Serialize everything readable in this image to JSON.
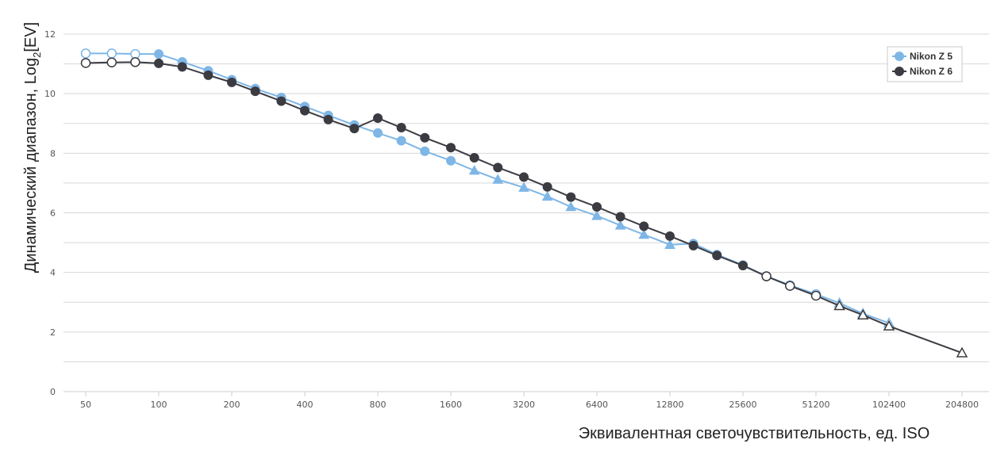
{
  "chart_data": {
    "type": "line",
    "xlabel": "Эквивалентная светочувствительность, ед. ISO",
    "ylabel_main": "Динамический диапазон, Log",
    "ylabel_sub": "2",
    "ylabel_tail": "[EV]",
    "ylim": [
      0,
      12
    ],
    "y_ticks": [
      0,
      2,
      4,
      6,
      8,
      10,
      12
    ],
    "x_scale": "log2",
    "x_tick_labels": [
      "50",
      "100",
      "200",
      "400",
      "800",
      "1600",
      "3200",
      "6400",
      "12800",
      "25600",
      "51200",
      "102400",
      "204800"
    ],
    "grid": true,
    "legend_position": "top-right",
    "colors": {
      "Nikon Z 5": "#7eb6e6",
      "Nikon Z 6": "#3b3b42"
    },
    "series": [
      {
        "name": "Nikon Z 5",
        "points": [
          {
            "iso": 50,
            "ev": 11.35,
            "marker": "hollow-circle"
          },
          {
            "iso": 64,
            "ev": 11.35,
            "marker": "hollow-circle"
          },
          {
            "iso": 80,
            "ev": 11.33,
            "marker": "hollow-circle"
          },
          {
            "iso": 100,
            "ev": 11.33,
            "marker": "circle"
          },
          {
            "iso": 125,
            "ev": 11.07,
            "marker": "circle"
          },
          {
            "iso": 160,
            "ev": 10.77,
            "marker": "circle"
          },
          {
            "iso": 200,
            "ev": 10.47,
            "marker": "circle"
          },
          {
            "iso": 250,
            "ev": 10.17,
            "marker": "circle"
          },
          {
            "iso": 320,
            "ev": 9.87,
            "marker": "circle"
          },
          {
            "iso": 400,
            "ev": 9.57,
            "marker": "circle"
          },
          {
            "iso": 500,
            "ev": 9.27,
            "marker": "circle"
          },
          {
            "iso": 640,
            "ev": 8.95,
            "marker": "circle"
          },
          {
            "iso": 800,
            "ev": 8.68,
            "marker": "circle"
          },
          {
            "iso": 1000,
            "ev": 8.42,
            "marker": "circle"
          },
          {
            "iso": 1250,
            "ev": 8.07,
            "marker": "circle"
          },
          {
            "iso": 1600,
            "ev": 7.75,
            "marker": "circle"
          },
          {
            "iso": 2000,
            "ev": 7.42,
            "marker": "triangle"
          },
          {
            "iso": 2500,
            "ev": 7.12,
            "marker": "triangle"
          },
          {
            "iso": 3200,
            "ev": 6.85,
            "marker": "triangle"
          },
          {
            "iso": 4000,
            "ev": 6.55,
            "marker": "triangle"
          },
          {
            "iso": 5000,
            "ev": 6.2,
            "marker": "triangle"
          },
          {
            "iso": 6400,
            "ev": 5.9,
            "marker": "triangle"
          },
          {
            "iso": 8000,
            "ev": 5.58,
            "marker": "triangle"
          },
          {
            "iso": 10000,
            "ev": 5.27,
            "marker": "triangle"
          },
          {
            "iso": 12800,
            "ev": 4.93,
            "marker": "triangle"
          },
          {
            "iso": 16000,
            "ev": 4.97,
            "marker": "circle"
          },
          {
            "iso": 20000,
            "ev": 4.6,
            "marker": "circle"
          },
          {
            "iso": 25600,
            "ev": 4.25,
            "marker": "circle"
          },
          {
            "iso": 32000,
            "ev": 3.87,
            "marker": "hollow-circle"
          },
          {
            "iso": 40000,
            "ev": 3.57,
            "marker": "hollow-circle"
          },
          {
            "iso": 51200,
            "ev": 3.27,
            "marker": "hollow-circle"
          },
          {
            "iso": 64000,
            "ev": 2.97,
            "marker": "hollow-triangle"
          },
          {
            "iso": 80000,
            "ev": 2.62,
            "marker": "hollow-triangle"
          },
          {
            "iso": 102400,
            "ev": 2.3,
            "marker": "hollow-triangle"
          }
        ]
      },
      {
        "name": "Nikon Z 6",
        "points": [
          {
            "iso": 50,
            "ev": 11.03,
            "marker": "hollow-circle"
          },
          {
            "iso": 64,
            "ev": 11.05,
            "marker": "hollow-circle"
          },
          {
            "iso": 80,
            "ev": 11.06,
            "marker": "hollow-circle"
          },
          {
            "iso": 100,
            "ev": 11.02,
            "marker": "circle"
          },
          {
            "iso": 125,
            "ev": 10.9,
            "marker": "circle"
          },
          {
            "iso": 160,
            "ev": 10.62,
            "marker": "circle"
          },
          {
            "iso": 200,
            "ev": 10.38,
            "marker": "circle"
          },
          {
            "iso": 250,
            "ev": 10.08,
            "marker": "circle"
          },
          {
            "iso": 320,
            "ev": 9.75,
            "marker": "circle"
          },
          {
            "iso": 400,
            "ev": 9.43,
            "marker": "circle"
          },
          {
            "iso": 500,
            "ev": 9.13,
            "marker": "circle"
          },
          {
            "iso": 640,
            "ev": 8.83,
            "marker": "circle"
          },
          {
            "iso": 800,
            "ev": 9.18,
            "marker": "circle"
          },
          {
            "iso": 1000,
            "ev": 8.86,
            "marker": "circle"
          },
          {
            "iso": 1250,
            "ev": 8.52,
            "marker": "circle"
          },
          {
            "iso": 1600,
            "ev": 8.19,
            "marker": "circle"
          },
          {
            "iso": 2000,
            "ev": 7.85,
            "marker": "circle"
          },
          {
            "iso": 2500,
            "ev": 7.52,
            "marker": "circle"
          },
          {
            "iso": 3200,
            "ev": 7.2,
            "marker": "circle"
          },
          {
            "iso": 4000,
            "ev": 6.87,
            "marker": "circle"
          },
          {
            "iso": 5000,
            "ev": 6.53,
            "marker": "circle"
          },
          {
            "iso": 6400,
            "ev": 6.2,
            "marker": "circle"
          },
          {
            "iso": 8000,
            "ev": 5.87,
            "marker": "circle"
          },
          {
            "iso": 10000,
            "ev": 5.55,
            "marker": "circle"
          },
          {
            "iso": 12800,
            "ev": 5.22,
            "marker": "circle"
          },
          {
            "iso": 16000,
            "ev": 4.9,
            "marker": "circle"
          },
          {
            "iso": 20000,
            "ev": 4.57,
            "marker": "circle"
          },
          {
            "iso": 25600,
            "ev": 4.23,
            "marker": "circle"
          },
          {
            "iso": 32000,
            "ev": 3.87,
            "marker": "hollow-circle"
          },
          {
            "iso": 40000,
            "ev": 3.55,
            "marker": "hollow-circle"
          },
          {
            "iso": 51200,
            "ev": 3.22,
            "marker": "hollow-circle"
          },
          {
            "iso": 64000,
            "ev": 2.88,
            "marker": "hollow-triangle"
          },
          {
            "iso": 80000,
            "ev": 2.57,
            "marker": "hollow-triangle"
          },
          {
            "iso": 102400,
            "ev": 2.2,
            "marker": "hollow-triangle"
          },
          {
            "iso": 204800,
            "ev": 1.3,
            "marker": "hollow-triangle"
          }
        ]
      }
    ]
  }
}
